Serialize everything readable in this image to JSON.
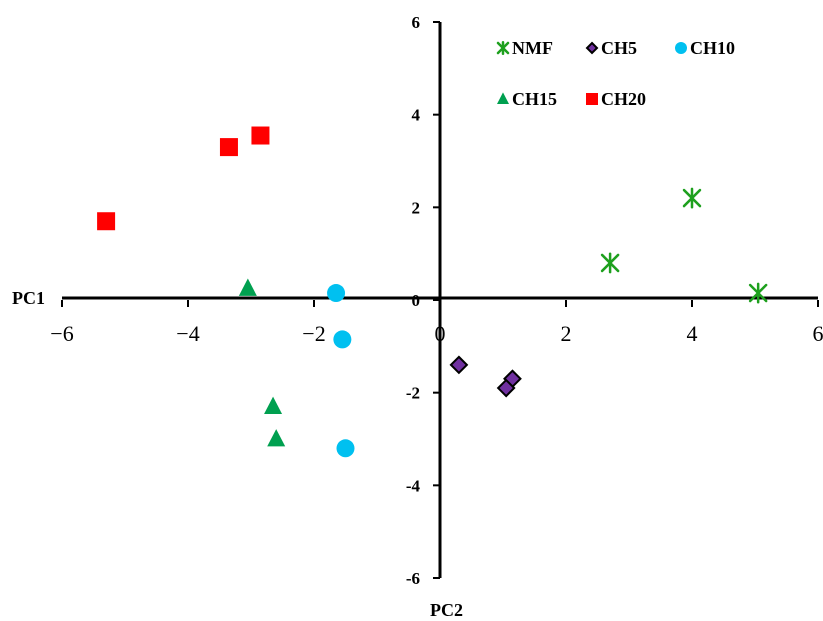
{
  "chart_data": {
    "type": "scatter",
    "title": "",
    "xlabel": "PC1",
    "ylabel": "PC2",
    "xlim": [
      -6,
      6
    ],
    "ylim": [
      -6,
      6
    ],
    "x_ticks": [
      -6,
      -4,
      -2,
      0,
      2,
      4,
      6
    ],
    "y_ticks": [
      -6,
      -4,
      -2,
      0,
      2,
      4,
      6
    ],
    "x_tick_labels": [
      "−6",
      "−4",
      "−2",
      "0",
      "2",
      "4",
      "6"
    ],
    "y_tick_labels": [
      "-6",
      "-4",
      "-2",
      "0",
      "2",
      "4",
      "6"
    ],
    "grid": false,
    "legend_position": "top-right",
    "series": [
      {
        "name": "NMF",
        "marker": "asterisk",
        "color": "#1ea01e",
        "points": [
          [
            2.7,
            0.8
          ],
          [
            4.0,
            2.2
          ],
          [
            5.05,
            0.15
          ]
        ]
      },
      {
        "name": "CH5",
        "marker": "diamond",
        "color": "#7030a0",
        "points": [
          [
            0.3,
            -1.4
          ],
          [
            1.15,
            -1.7
          ],
          [
            1.05,
            -1.9
          ]
        ]
      },
      {
        "name": "CH10",
        "marker": "circle",
        "color": "#00c0f0",
        "points": [
          [
            -1.65,
            0.15
          ],
          [
            -1.55,
            -0.85
          ],
          [
            -1.5,
            -3.2
          ]
        ]
      },
      {
        "name": "CH15",
        "marker": "triangle",
        "color": "#00a050",
        "points": [
          [
            -3.05,
            0.25
          ],
          [
            -2.65,
            -2.3
          ],
          [
            -2.6,
            -3.0
          ]
        ]
      },
      {
        "name": "CH20",
        "marker": "square",
        "color": "#ff0000",
        "points": [
          [
            -5.3,
            1.7
          ],
          [
            -3.35,
            3.3
          ],
          [
            -2.85,
            3.55
          ]
        ]
      }
    ]
  }
}
